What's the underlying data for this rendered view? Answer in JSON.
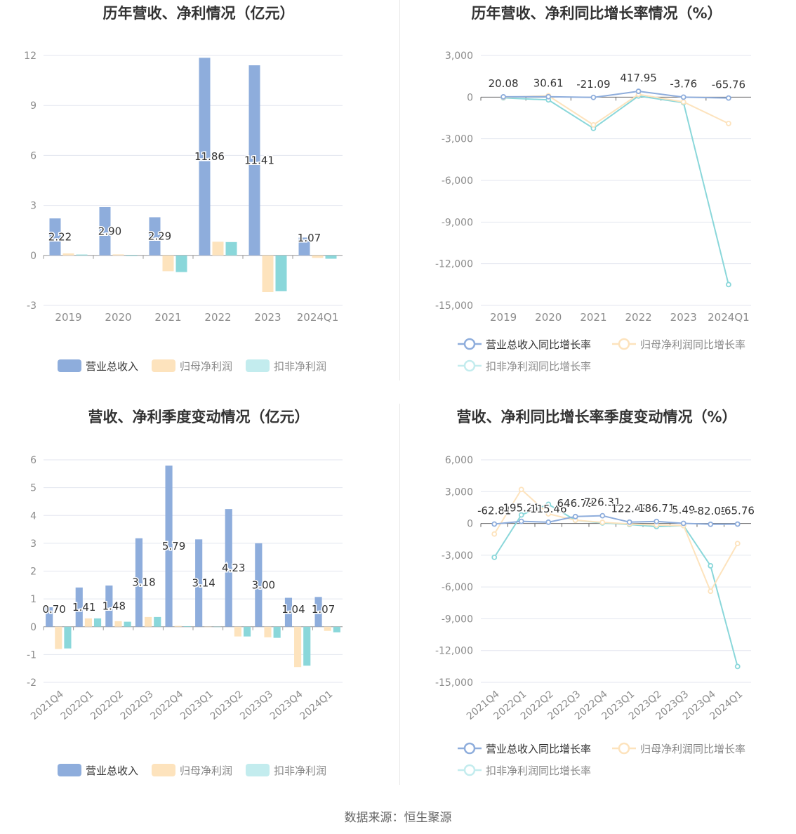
{
  "source": "数据来源：恒生聚源",
  "colors": {
    "revenue": "#8eaddc",
    "net_profit": "#fde3bd",
    "deducted": "#8ad7da",
    "legend_deducted": "#c3ecee",
    "grid": "#e3e6ef",
    "axis_text": "#8c8c8c"
  },
  "chart_data": [
    {
      "type": "bar",
      "title": "历年营收、净利情况（亿元）",
      "categories": [
        "2019",
        "2020",
        "2021",
        "2022",
        "2023",
        "2024Q1"
      ],
      "ylim": [
        -3,
        12
      ],
      "yticks": [
        -3,
        0,
        3,
        6,
        9,
        12
      ],
      "series": [
        {
          "name": "营业总收入",
          "values": [
            2.22,
            2.9,
            2.29,
            11.86,
            11.41,
            1.07
          ],
          "labels": [
            "2.22",
            "2.90",
            "2.29",
            "11.86",
            "11.41",
            "1.07"
          ]
        },
        {
          "name": "归母净利润",
          "values": [
            0.12,
            0.06,
            -0.95,
            0.82,
            -2.2,
            -0.15
          ]
        },
        {
          "name": "扣非净利润",
          "values": [
            0.05,
            -0.04,
            -1.0,
            0.8,
            -2.15,
            -0.2
          ]
        }
      ],
      "legend": "bottom"
    },
    {
      "type": "line",
      "title": "历年营收、净利同比增长率情况（%）",
      "categories": [
        "2019",
        "2020",
        "2021",
        "2022",
        "2023",
        "2024Q1"
      ],
      "ylim": [
        -15000,
        3000
      ],
      "yticks": [
        -15000,
        -12000,
        -9000,
        -6000,
        -3000,
        0,
        3000
      ],
      "ytick_labels": [
        "-15,000",
        "-12,000",
        "-9,000",
        "-6,000",
        "-3,000",
        "0",
        "3,000"
      ],
      "series": [
        {
          "name": "营业总收入同比增长率",
          "values": [
            20.08,
            30.61,
            -21.09,
            417.95,
            -3.76,
            -65.76
          ],
          "labels": [
            "20.08",
            "30.61",
            "-21.09",
            "417.95",
            "-3.76",
            "-65.76"
          ]
        },
        {
          "name": "归母净利润同比增长率",
          "values": [
            -20,
            100,
            -2000,
            200,
            -350,
            -1900
          ]
        },
        {
          "name": "扣非净利润同比增长率",
          "values": [
            -50,
            -200,
            -2250,
            80,
            -400,
            -13500
          ]
        }
      ],
      "legend": "bottom"
    },
    {
      "type": "bar",
      "title": "营收、净利季度变动情况（亿元）",
      "categories": [
        "2021Q4",
        "2022Q1",
        "2022Q2",
        "2022Q3",
        "2022Q4",
        "2023Q1",
        "2023Q2",
        "2023Q3",
        "2023Q4",
        "2024Q1"
      ],
      "ylim": [
        -2,
        6
      ],
      "yticks": [
        -2,
        -1,
        0,
        1,
        2,
        3,
        4,
        5,
        6
      ],
      "series": [
        {
          "name": "营业总收入",
          "values": [
            0.7,
            1.41,
            1.48,
            3.18,
            5.79,
            3.14,
            4.23,
            3.0,
            1.04,
            1.07
          ],
          "labels": [
            "0.70",
            "1.41",
            "1.48",
            "3.18",
            "5.79",
            "3.14",
            "4.23",
            "3.00",
            "1.04",
            "1.07"
          ]
        },
        {
          "name": "归母净利润",
          "values": [
            -0.8,
            0.3,
            0.2,
            0.35,
            0.03,
            0.0,
            -0.35,
            -0.38,
            -1.45,
            -0.15
          ]
        },
        {
          "name": "扣非净利润",
          "values": [
            -0.78,
            0.3,
            0.18,
            0.35,
            0.02,
            0.0,
            -0.35,
            -0.4,
            -1.4,
            -0.2
          ]
        }
      ],
      "legend": "bottom"
    },
    {
      "type": "line",
      "title": "营收、净利同比增长率季度变动情况（%）",
      "categories": [
        "2021Q4",
        "2022Q1",
        "2022Q2",
        "2022Q3",
        "2022Q4",
        "2023Q1",
        "2023Q2",
        "2023Q3",
        "2023Q4",
        "2024Q1"
      ],
      "ylim": [
        -15000,
        6000
      ],
      "yticks": [
        -15000,
        -12000,
        -9000,
        -6000,
        -3000,
        0,
        3000,
        6000
      ],
      "ytick_labels": [
        "-15,000",
        "-12,000",
        "-9,000",
        "-6,000",
        "-3,000",
        "0",
        "3,000",
        "6,000"
      ],
      "series": [
        {
          "name": "营业总收入同比增长率",
          "values": [
            -62.81,
            195.21,
            115.46,
            646.79,
            726.31,
            122.49,
            186.71,
            5.49,
            -82.05,
            -65.76
          ],
          "labels": [
            "-62.81",
            "195.21",
            "115.46",
            "646.79",
            "726.31",
            "122.49",
            "186.71",
            "5.49",
            "-82.05",
            "-65.76"
          ]
        },
        {
          "name": "归母净利润同比增长率",
          "values": [
            -1000,
            3200,
            900,
            300,
            100,
            -50,
            -150,
            -200,
            -6400,
            -1900
          ]
        },
        {
          "name": "扣非净利润同比增长率",
          "values": [
            -3200,
            800,
            1800,
            300,
            50,
            -100,
            -300,
            -200,
            -4000,
            -13500
          ]
        }
      ],
      "legend": "bottom"
    }
  ]
}
